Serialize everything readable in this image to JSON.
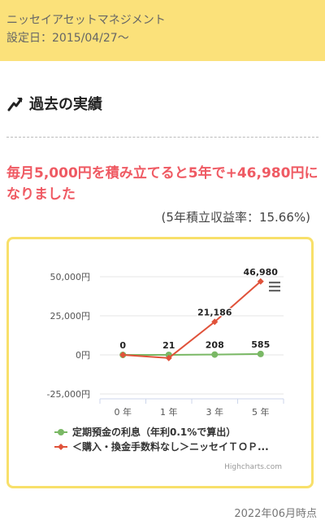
{
  "header": {
    "company": "ニッセイアセットマネジメント",
    "inception_date": "設定日：2015/04/27〜"
  },
  "section": {
    "title": "過去の実績",
    "icon": "trend-arrow-icon"
  },
  "headline": "毎月5,000円を積み立てると5年で+46,980円になりました",
  "rate_text": "(5年積立収益率：15.66%)",
  "colors": {
    "header_bg": "#fbe17a",
    "accent_red": "#ef5a63",
    "chart_border": "#f8e06a",
    "series_green": "#7ab865",
    "series_red": "#e0523a"
  },
  "chart_data": {
    "type": "line",
    "categories": [
      "0 年",
      "1 年",
      "3 年",
      "5 年"
    ],
    "ylim": [
      -25000,
      50000
    ],
    "yticks": [
      50000,
      25000,
      0,
      -25000
    ],
    "ytick_labels": [
      "50,000円",
      "25,000円",
      "0円",
      "-25,000円"
    ],
    "grid": true,
    "legend_position": "bottom-left",
    "series": [
      {
        "name": "定期預金の利息（年利0.1%で算出）",
        "values": [
          0,
          21,
          208,
          585
        ],
        "labels": [
          "0",
          "21",
          "208",
          "585"
        ],
        "color": "#7ab865"
      },
      {
        "name": "＜購入・換金手数料なし＞ニッセイＴＯＰ...",
        "values": [
          0,
          -2000,
          21186,
          46980
        ],
        "labels": [
          "",
          "",
          "21,186",
          "46,980"
        ],
        "color": "#e0523a"
      }
    ],
    "credit": "Highcharts.com",
    "menu_icon": "hamburger-menu-icon"
  },
  "as_of": "2022年06月時点"
}
